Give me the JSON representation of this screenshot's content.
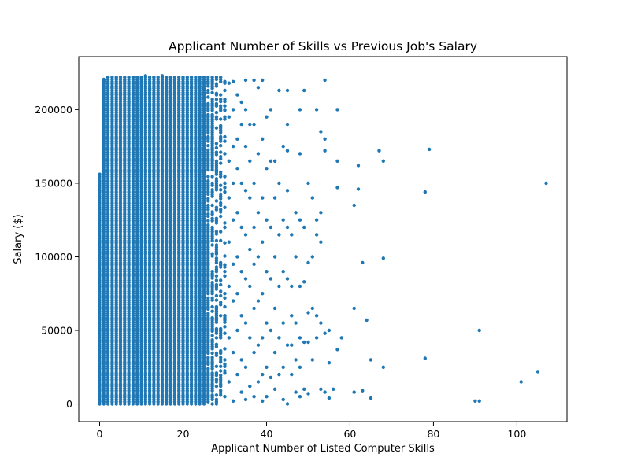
{
  "chart_data": {
    "type": "scatter",
    "title": "Applicant Number of Skills vs Previous Job's Salary",
    "xlabel": "Applicant Number of Listed Computer Skills",
    "ylabel": "Salary ($)",
    "xlim": [
      -5,
      112
    ],
    "ylim": [
      -12000,
      236000
    ],
    "x_ticks": [
      0,
      20,
      40,
      60,
      80,
      100
    ],
    "y_ticks": [
      0,
      50000,
      100000,
      150000,
      200000
    ],
    "x_tick_labels": [
      "0",
      "20",
      "40",
      "60",
      "80",
      "100"
    ],
    "y_tick_labels": [
      "0",
      "50000",
      "100000",
      "150000",
      "200000"
    ],
    "grid": false,
    "legend": "none",
    "marker_color": "#1f77b4",
    "dense_band": {
      "x_range": [
        0,
        30
      ],
      "y_range": [
        0,
        222000
      ]
    },
    "points": [
      [
        0,
        2000
      ],
      [
        0,
        10000
      ],
      [
        0,
        30000
      ],
      [
        0,
        50000
      ],
      [
        0,
        80000
      ],
      [
        0,
        100000
      ],
      [
        0,
        130000
      ],
      [
        0,
        145000
      ],
      [
        0,
        150000
      ],
      [
        0,
        156000
      ],
      [
        1,
        5000
      ],
      [
        1,
        60000
      ],
      [
        1,
        120000
      ],
      [
        1,
        200000
      ],
      [
        1,
        220000
      ],
      [
        2,
        222000
      ],
      [
        3,
        215000
      ],
      [
        4,
        221000
      ],
      [
        5,
        210000
      ],
      [
        6,
        220000
      ],
      [
        7,
        205000
      ],
      [
        8,
        222000
      ],
      [
        9,
        218000
      ],
      [
        10,
        221000
      ],
      [
        11,
        223000
      ],
      [
        12,
        214000
      ],
      [
        13,
        222000
      ],
      [
        14,
        219000
      ],
      [
        15,
        223000
      ],
      [
        16,
        212000
      ],
      [
        17,
        221000
      ],
      [
        18,
        220000
      ],
      [
        19,
        216000
      ],
      [
        20,
        221000
      ],
      [
        21,
        218000
      ],
      [
        22,
        215000
      ],
      [
        23,
        220000
      ],
      [
        24,
        222000
      ],
      [
        25,
        214000
      ],
      [
        26,
        219000
      ],
      [
        27,
        220000
      ],
      [
        28,
        211000
      ],
      [
        29,
        219000
      ],
      [
        30,
        218000
      ],
      [
        30,
        200000
      ],
      [
        30,
        170000
      ],
      [
        30,
        150000
      ],
      [
        30,
        120000
      ],
      [
        30,
        90000
      ],
      [
        30,
        60000
      ],
      [
        30,
        30000
      ],
      [
        30,
        5000
      ],
      [
        31,
        218000
      ],
      [
        31,
        195000
      ],
      [
        31,
        165000
      ],
      [
        31,
        140000
      ],
      [
        31,
        110000
      ],
      [
        31,
        80000
      ],
      [
        31,
        45000
      ],
      [
        31,
        15000
      ],
      [
        32,
        219000
      ],
      [
        32,
        200000
      ],
      [
        32,
        175000
      ],
      [
        32,
        150000
      ],
      [
        32,
        125000
      ],
      [
        32,
        95000
      ],
      [
        32,
        70000
      ],
      [
        32,
        35000
      ],
      [
        32,
        2000
      ],
      [
        33,
        210000
      ],
      [
        33,
        180000
      ],
      [
        33,
        160000
      ],
      [
        33,
        130000
      ],
      [
        33,
        100000
      ],
      [
        33,
        75000
      ],
      [
        33,
        50000
      ],
      [
        33,
        20000
      ],
      [
        34,
        205000
      ],
      [
        34,
        190000
      ],
      [
        34,
        150000
      ],
      [
        34,
        120000
      ],
      [
        34,
        90000
      ],
      [
        34,
        60000
      ],
      [
        34,
        30000
      ],
      [
        34,
        8000
      ],
      [
        35,
        220000
      ],
      [
        35,
        200000
      ],
      [
        35,
        175000
      ],
      [
        35,
        145000
      ],
      [
        35,
        115000
      ],
      [
        35,
        85000
      ],
      [
        35,
        55000
      ],
      [
        35,
        25000
      ],
      [
        35,
        3000
      ],
      [
        36,
        190000
      ],
      [
        36,
        165000
      ],
      [
        36,
        140000
      ],
      [
        36,
        105000
      ],
      [
        36,
        80000
      ],
      [
        36,
        45000
      ],
      [
        36,
        12000
      ],
      [
        37,
        220000
      ],
      [
        37,
        190000
      ],
      [
        37,
        150000
      ],
      [
        37,
        120000
      ],
      [
        37,
        95000
      ],
      [
        37,
        65000
      ],
      [
        37,
        35000
      ],
      [
        37,
        5000
      ],
      [
        38,
        215000
      ],
      [
        38,
        170000
      ],
      [
        38,
        130000
      ],
      [
        38,
        100000
      ],
      [
        38,
        70000
      ],
      [
        38,
        40000
      ],
      [
        38,
        15000
      ],
      [
        39,
        220000
      ],
      [
        39,
        180000
      ],
      [
        39,
        140000
      ],
      [
        39,
        110000
      ],
      [
        39,
        75000
      ],
      [
        39,
        45000
      ],
      [
        39,
        20000
      ],
      [
        39,
        2000
      ],
      [
        40,
        195000
      ],
      [
        40,
        160000
      ],
      [
        40,
        125000
      ],
      [
        40,
        90000
      ],
      [
        40,
        55000
      ],
      [
        40,
        25000
      ],
      [
        40,
        5000
      ],
      [
        41,
        200000
      ],
      [
        41,
        165000
      ],
      [
        41,
        120000
      ],
      [
        41,
        85000
      ],
      [
        41,
        50000
      ],
      [
        41,
        18000
      ],
      [
        42,
        165000
      ],
      [
        42,
        140000
      ],
      [
        42,
        100000
      ],
      [
        42,
        65000
      ],
      [
        42,
        35000
      ],
      [
        42,
        10000
      ],
      [
        43,
        213000
      ],
      [
        43,
        150000
      ],
      [
        43,
        115000
      ],
      [
        43,
        80000
      ],
      [
        43,
        45000
      ],
      [
        43,
        20000
      ],
      [
        44,
        175000
      ],
      [
        44,
        125000
      ],
      [
        44,
        90000
      ],
      [
        44,
        55000
      ],
      [
        44,
        25000
      ],
      [
        44,
        3000
      ],
      [
        45,
        213000
      ],
      [
        45,
        190000
      ],
      [
        45,
        172000
      ],
      [
        45,
        145000
      ],
      [
        45,
        120000
      ],
      [
        45,
        85000
      ],
      [
        45,
        40000
      ],
      [
        45,
        0
      ],
      [
        46,
        115000
      ],
      [
        46,
        80000
      ],
      [
        46,
        60000
      ],
      [
        46,
        40000
      ],
      [
        46,
        20000
      ],
      [
        47,
        130000
      ],
      [
        47,
        100000
      ],
      [
        47,
        55000
      ],
      [
        47,
        30000
      ],
      [
        47,
        8000
      ],
      [
        48,
        200000
      ],
      [
        48,
        170000
      ],
      [
        48,
        125000
      ],
      [
        48,
        80000
      ],
      [
        48,
        45000
      ],
      [
        48,
        25000
      ],
      [
        48,
        5000
      ],
      [
        49,
        213000
      ],
      [
        49,
        120000
      ],
      [
        49,
        83000
      ],
      [
        49,
        42000
      ],
      [
        49,
        10000
      ],
      [
        50,
        150000
      ],
      [
        50,
        96000
      ],
      [
        50,
        62000
      ],
      [
        50,
        42000
      ],
      [
        50,
        7000
      ],
      [
        51,
        140000
      ],
      [
        51,
        100000
      ],
      [
        51,
        65000
      ],
      [
        51,
        30000
      ],
      [
        52,
        200000
      ],
      [
        52,
        125000
      ],
      [
        52,
        115000
      ],
      [
        52,
        60000
      ],
      [
        52,
        45000
      ],
      [
        53,
        185000
      ],
      [
        53,
        130000
      ],
      [
        53,
        110000
      ],
      [
        53,
        55000
      ],
      [
        53,
        10000
      ],
      [
        54,
        220000
      ],
      [
        54,
        180000
      ],
      [
        54,
        172000
      ],
      [
        54,
        48000
      ],
      [
        54,
        8000
      ],
      [
        55,
        50000
      ],
      [
        55,
        28000
      ],
      [
        55,
        4000
      ],
      [
        56,
        10000
      ],
      [
        57,
        200000
      ],
      [
        57,
        165000
      ],
      [
        57,
        147000
      ],
      [
        57,
        37000
      ],
      [
        58,
        45000
      ],
      [
        61,
        135000
      ],
      [
        61,
        65000
      ],
      [
        61,
        8000
      ],
      [
        62,
        162000
      ],
      [
        62,
        146000
      ],
      [
        63,
        96000
      ],
      [
        63,
        9000
      ],
      [
        64,
        57000
      ],
      [
        65,
        4000
      ],
      [
        65,
        30000
      ],
      [
        67,
        172000
      ],
      [
        68,
        165000
      ],
      [
        68,
        99000
      ],
      [
        68,
        25000
      ],
      [
        78,
        144000
      ],
      [
        78,
        31000
      ],
      [
        79,
        173000
      ],
      [
        90,
        2000
      ],
      [
        91,
        50000
      ],
      [
        91,
        2000
      ],
      [
        101,
        15000
      ],
      [
        105,
        22000
      ],
      [
        107,
        150000
      ]
    ]
  }
}
